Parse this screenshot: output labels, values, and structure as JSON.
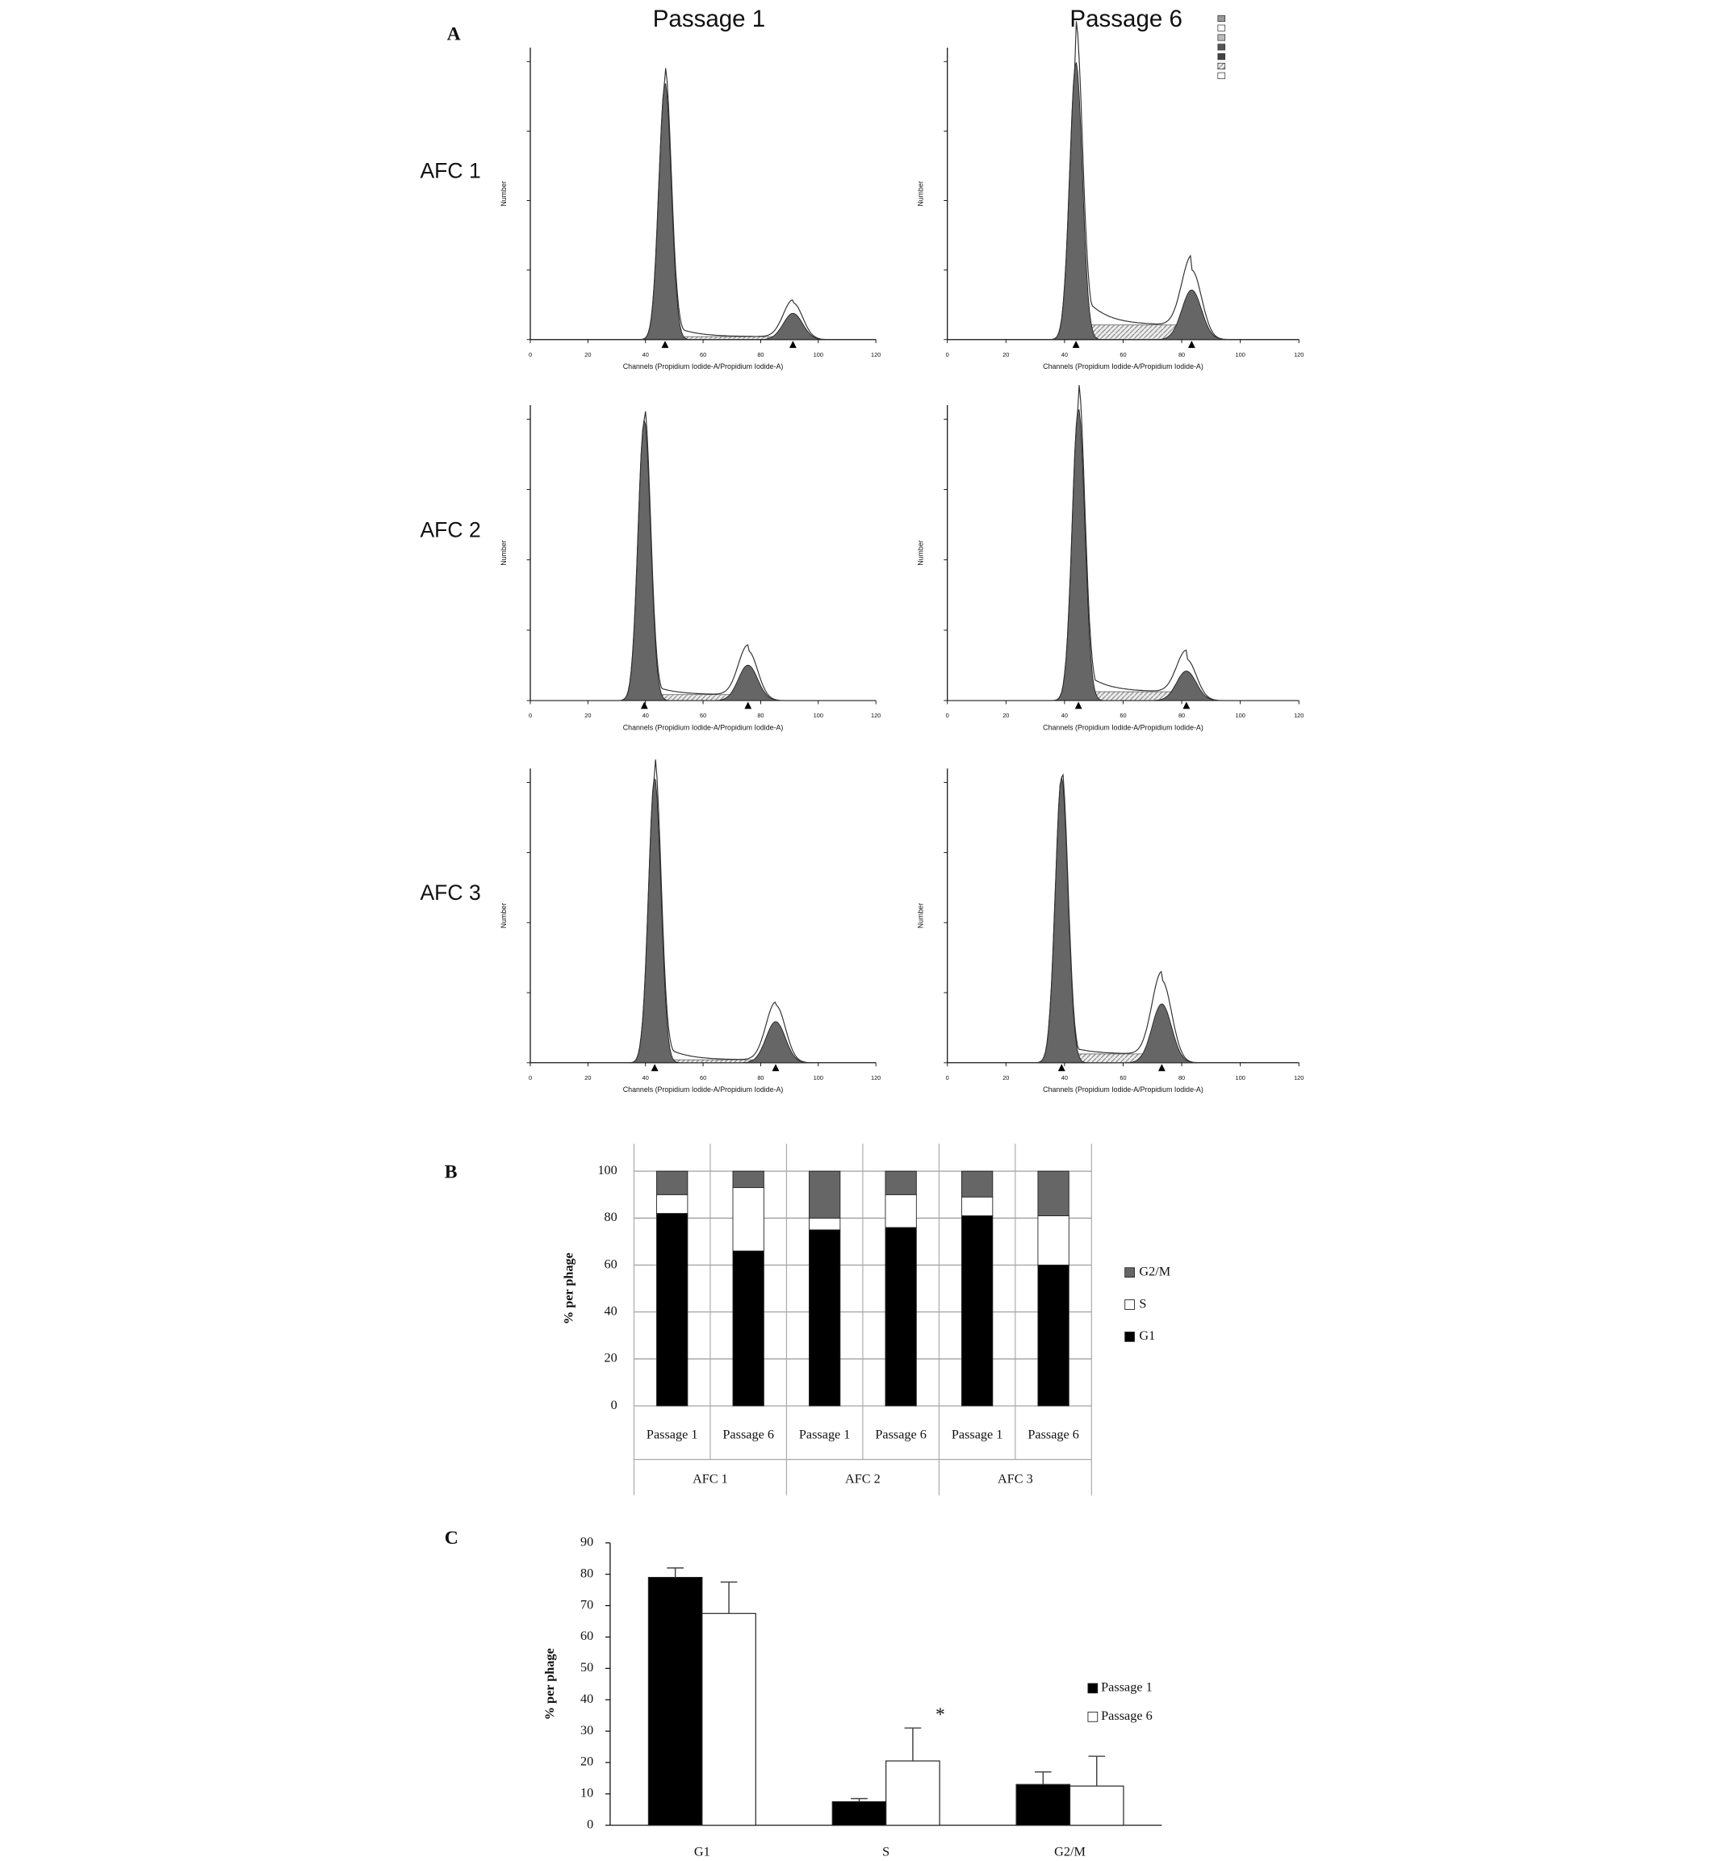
{
  "panel_a": {
    "label": "A",
    "columns": [
      "Passage 1",
      "Passage 6"
    ],
    "rows": [
      "AFC 1",
      "AFC 2",
      "AFC 3"
    ],
    "xlabel": "Channels (Propidium Iodide-A/Propidium Iodide-A)",
    "ylabel": "Number",
    "xlim": [
      0,
      120
    ],
    "xticks": [
      0,
      20,
      40,
      60,
      80,
      100,
      120
    ]
  },
  "chart_data": [
    {
      "type": "stacked-bar",
      "panel": "B",
      "ylabel": "% per phage",
      "categories": [
        "Passage 1",
        "Passage 6",
        "Passage 1",
        "Passage 6",
        "Passage 1",
        "Passage 6"
      ],
      "groups": [
        "AFC 1",
        "AFC 2",
        "AFC 3"
      ],
      "series": [
        {
          "name": "G1",
          "color": "#000000",
          "values": [
            82,
            66,
            75,
            76,
            81,
            60
          ]
        },
        {
          "name": "S",
          "color": "#ffffff",
          "values": [
            8,
            27,
            5,
            14,
            8,
            21
          ]
        },
        {
          "name": "G2/M",
          "color": "#666666",
          "values": [
            10,
            7,
            20,
            10,
            11,
            19
          ]
        }
      ],
      "ylim": [
        0,
        100
      ],
      "yticks": [
        0,
        20,
        40,
        60,
        80,
        100
      ],
      "grid": true
    },
    {
      "type": "bar",
      "panel": "C",
      "ylabel": "% per phage",
      "categories": [
        "G1",
        "S",
        "G2/M"
      ],
      "series": [
        {
          "name": "Passage 1",
          "color": "#000000",
          "values": [
            79,
            7.5,
            13
          ],
          "errors": [
            3,
            1,
            4
          ]
        },
        {
          "name": "Passage 6",
          "color": "#ffffff",
          "values": [
            67.5,
            20.5,
            12.5
          ],
          "errors": [
            10,
            10.5,
            9.5
          ]
        }
      ],
      "ylim": [
        0,
        90
      ],
      "yticks": [
        0,
        10,
        20,
        30,
        40,
        50,
        60,
        70,
        80,
        90
      ],
      "grid": false,
      "annotations": [
        {
          "text": "*",
          "category": "S",
          "series": "Passage 6"
        }
      ]
    }
  ]
}
